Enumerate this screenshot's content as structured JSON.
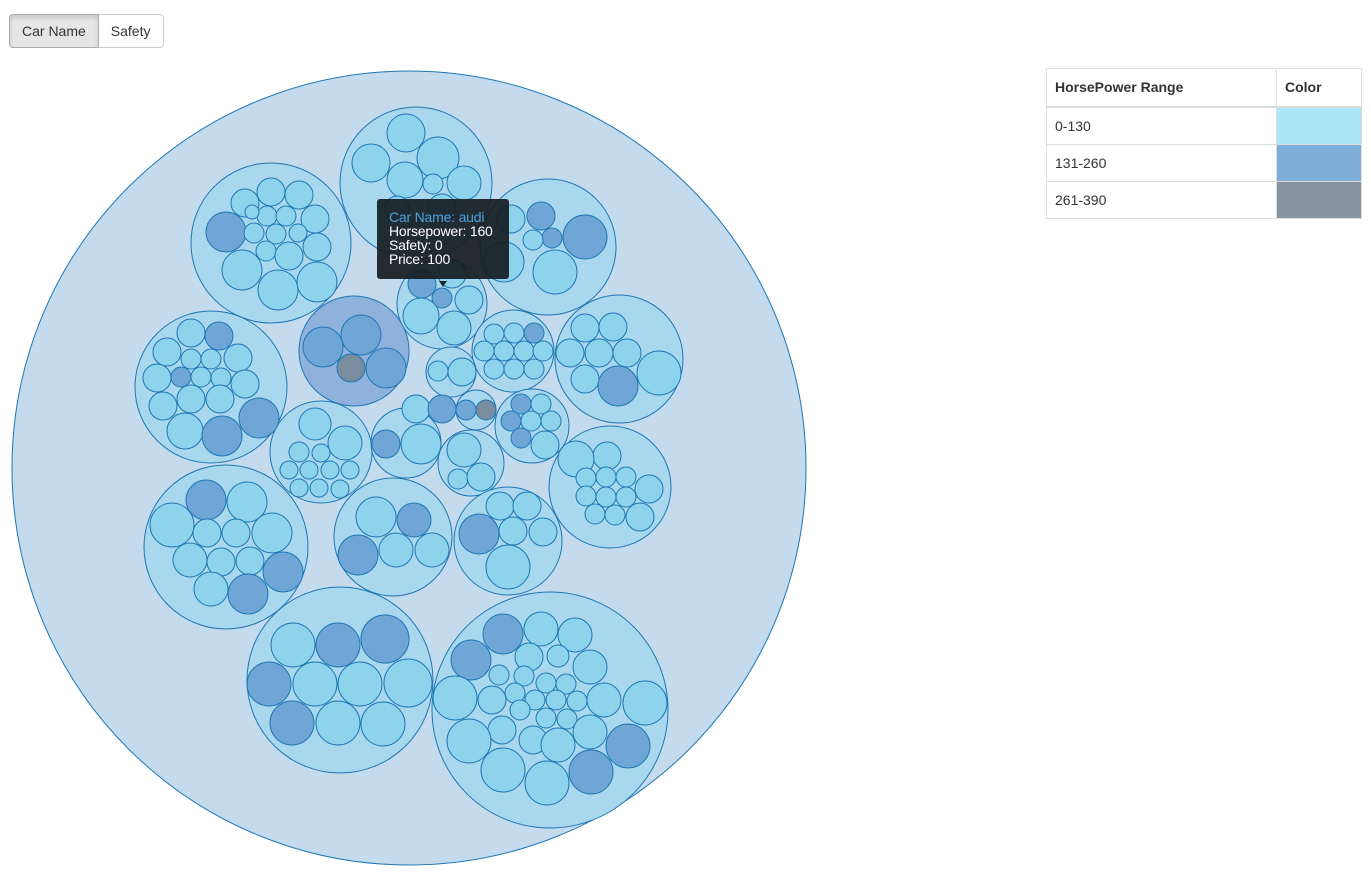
{
  "controls": {
    "buttons": [
      {
        "label": "Car Name",
        "active": true
      },
      {
        "label": "Safety",
        "active": false
      }
    ]
  },
  "tooltip": {
    "name_label": "Car Name: audi",
    "horsepower_label": "Horsepower: 160",
    "safety_label": "Safety: 0",
    "price_label": "Price: 100"
  },
  "legend": {
    "headers": [
      "HorsePower Range",
      "Color"
    ],
    "rows": [
      {
        "range": "0-130",
        "color": "#a9e6f7"
      },
      {
        "range": "131-260",
        "color": "#7faed8"
      },
      {
        "range": "261-390",
        "color": "#87939f"
      }
    ]
  },
  "chart_data": {
    "type": "circle-packing",
    "grouping": "Car Name",
    "colors": {
      "root_fill": "#c4dbed",
      "group_fill": "#a9d8ee",
      "group_fill_selected": "#8eb2dc",
      "stroke": "#1f77b4",
      "hp_low": "#8dd3ec",
      "hp_mid": "#6fa6d6",
      "hp_high": "#7a8d9f"
    }
  }
}
